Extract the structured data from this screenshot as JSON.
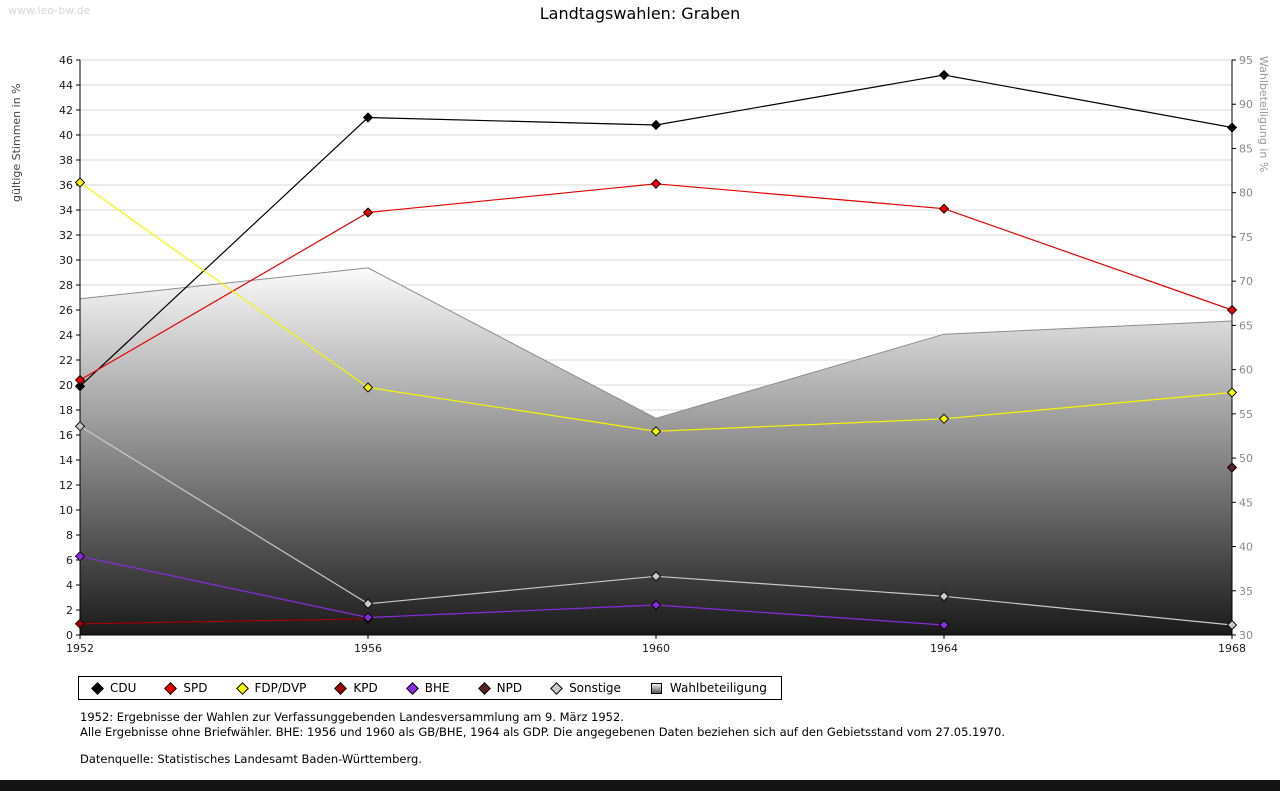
{
  "watermark": "www.leo-bw.de",
  "title": "Landtagswahlen: Graben",
  "chart_data": {
    "type": "line",
    "x": [
      "1952",
      "1956",
      "1960",
      "1964",
      "1968"
    ],
    "left_axis": {
      "label": "gültige Stimmen in %",
      "min": 0,
      "max": 46,
      "step": 2
    },
    "right_axis": {
      "label": "Wahlbeteiligung in %",
      "min": 30,
      "max": 95,
      "step": 5
    },
    "grid": "horizontal",
    "legend_position": "bottom",
    "series": [
      {
        "name": "CDU",
        "color": "#000000",
        "axis": "left",
        "style": "line",
        "values": [
          19.9,
          41.4,
          40.8,
          44.8,
          40.6
        ]
      },
      {
        "name": "SPD",
        "color": "#e60000",
        "axis": "left",
        "style": "line",
        "values": [
          20.4,
          33.8,
          36.1,
          34.1,
          26.0
        ]
      },
      {
        "name": "FDP/DVP",
        "color": "#f8f500",
        "axis": "left",
        "style": "line",
        "values": [
          36.2,
          19.8,
          16.3,
          17.3,
          19.4
        ]
      },
      {
        "name": "KPD",
        "color": "#a00000",
        "axis": "left",
        "style": "line",
        "values": [
          0.9,
          1.3,
          null,
          null,
          null
        ]
      },
      {
        "name": "BHE",
        "color": "#8a2be2",
        "axis": "left",
        "style": "line",
        "values": [
          6.3,
          1.4,
          2.4,
          0.8,
          null
        ]
      },
      {
        "name": "NPD",
        "color": "#5c2222",
        "axis": "left",
        "style": "line",
        "values": [
          null,
          null,
          null,
          null,
          13.4
        ]
      },
      {
        "name": "Sonstige",
        "color": "#c9c9c9",
        "axis": "left",
        "style": "line",
        "values": [
          16.7,
          2.5,
          4.7,
          3.1,
          0.8
        ]
      },
      {
        "name": "Wahlbeteiligung",
        "color": "#8c8c8c",
        "axis": "right",
        "style": "area",
        "values": [
          68,
          71.5,
          54.5,
          64,
          65.5
        ]
      }
    ]
  },
  "notes": [
    "1952: Ergebnisse der Wahlen zur Verfassunggebenden Landesversammlung am 9. März 1952.",
    "Alle Ergebnisse ohne Briefwähler. BHE: 1956 und 1960 als GB/BHE, 1964 als GDP. Die angegebenen Daten beziehen sich auf den Gebietsstand vom 27.05.1970.",
    "Datenquelle: Statistisches Landesamt Baden-Württemberg."
  ]
}
